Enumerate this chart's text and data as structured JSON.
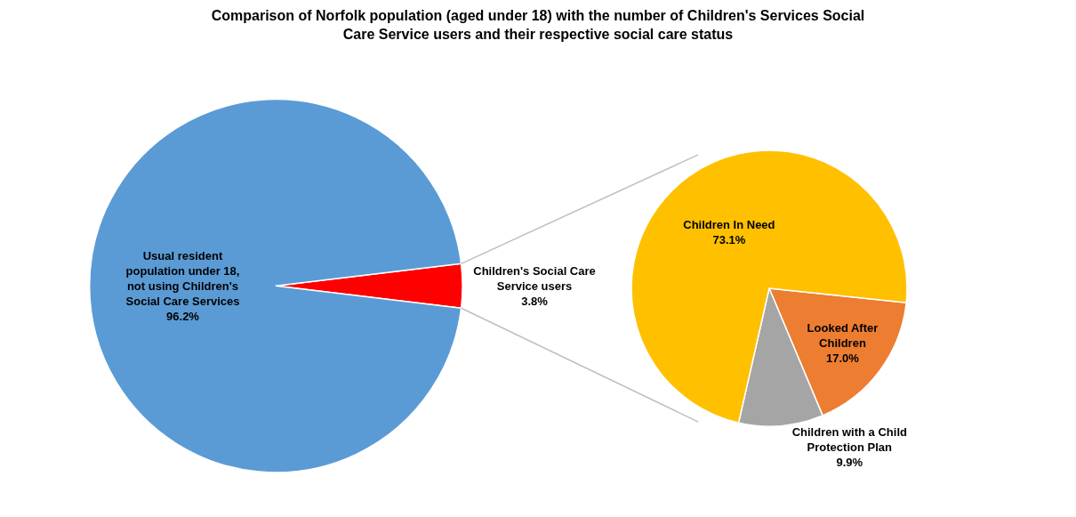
{
  "chart_data": [
    {
      "type": "pie",
      "title": "Comparison of Norfolk population (aged under 18) with the number of Children's Services Social Care Service users and their respective social care status",
      "categories": [
        "Children's Social Care Service users",
        "Usual resident population under 18, not using Children's Social Care Services"
      ],
      "values": [
        3.8,
        96.2
      ],
      "value_labels": [
        "3.8%",
        "96.2%"
      ],
      "colors": [
        "#ff0000",
        "#5b9bd5"
      ],
      "legend": false
    },
    {
      "type": "pie",
      "categories": [
        "Looked After Children",
        "Children with a Child Protection Plan",
        "Children In Need"
      ],
      "values": [
        17.0,
        9.9,
        73.1
      ],
      "value_labels": [
        "17.0%",
        "9.9%",
        "73.1%"
      ],
      "colors": [
        "#ed7d31",
        "#a5a5a5",
        "#ffc000"
      ],
      "legend": false
    }
  ]
}
